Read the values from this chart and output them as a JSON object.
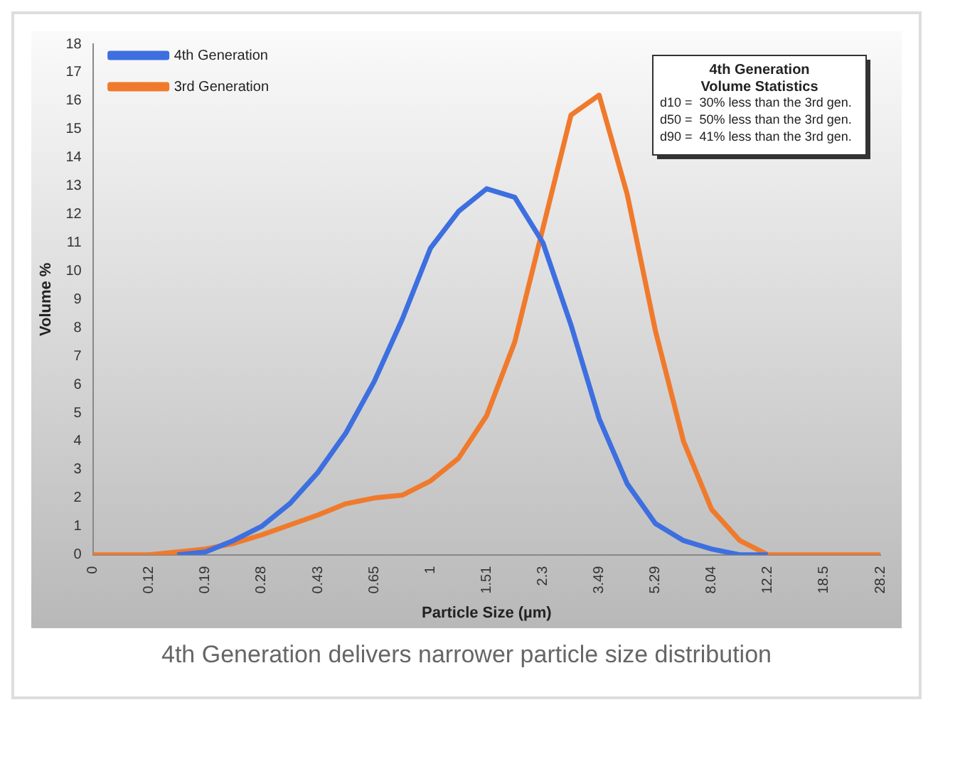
{
  "chart_data": {
    "type": "line",
    "xlabel": "Particle Size (µm)",
    "ylabel": "Volume %",
    "categories": [
      "0",
      null,
      "0.12",
      null,
      "0.19",
      null,
      "0.28",
      null,
      "0.43",
      null,
      "0.65",
      null,
      "1",
      null,
      "1.51",
      null,
      "2.3",
      null,
      "3.49",
      null,
      "5.29",
      null,
      "8.04",
      null,
      "12.2",
      null,
      "18.5",
      null,
      "28.2"
    ],
    "series": [
      {
        "name": "4th Generation",
        "color": "#3d6fe0",
        "values": [
          null,
          null,
          null,
          0,
          0.1,
          0.5,
          1.0,
          1.8,
          2.9,
          4.3,
          6.1,
          8.3,
          10.8,
          12.1,
          12.9,
          12.6,
          11.0,
          8.1,
          4.8,
          2.5,
          1.1,
          0.5,
          0.2,
          0,
          0,
          null,
          null,
          null,
          null
        ]
      },
      {
        "name": "3rd Generation",
        "color": "#f07a2c",
        "values": [
          0,
          0,
          0,
          0.1,
          0.2,
          0.4,
          0.7,
          1.05,
          1.4,
          1.8,
          2.0,
          2.1,
          2.6,
          3.4,
          4.9,
          7.5,
          11.5,
          15.5,
          16.2,
          12.7,
          7.9,
          4.0,
          1.6,
          0.5,
          0,
          0,
          0,
          0,
          0
        ]
      }
    ],
    "ylim": [
      0,
      18
    ],
    "yticks": [
      0,
      1,
      2,
      3,
      4,
      5,
      6,
      7,
      8,
      9,
      10,
      11,
      12,
      13,
      14,
      15,
      16,
      17,
      18
    ],
    "grid": false,
    "legend": "top left",
    "marker": "none",
    "line_style": "solid",
    "annotations": [
      "4th Generation",
      "Volume Statistics",
      "d10 =  30% less than the 3rd gen.",
      "d50 =  50% less than the 3rd gen.",
      "d90 =  41% less than the 3rd gen.",
      "4th Generation delivers narrower particle size distribution"
    ]
  }
}
